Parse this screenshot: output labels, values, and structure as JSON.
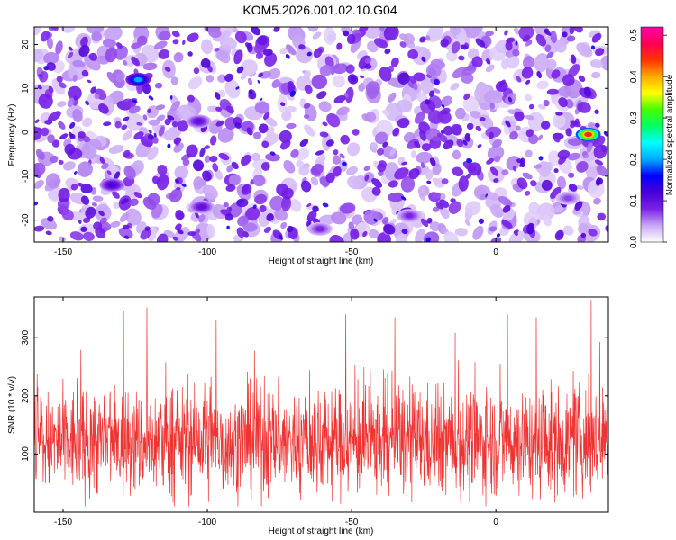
{
  "title": "KOM5.2026.001.02.10.G04",
  "chart_data": [
    {
      "type": "heatmap",
      "xlabel": "Height of straight line (km)",
      "ylabel": "Frequency (Hz)",
      "xlim": [
        -160,
        39
      ],
      "ylim": [
        -25,
        24
      ],
      "xticks": [
        -150,
        -100,
        -50,
        0
      ],
      "yticks": [
        -20,
        -10,
        0,
        10,
        20
      ],
      "colorbar": {
        "label": "Normalized spectral amplitude",
        "range": [
          0.0,
          0.52
        ],
        "ticks": [
          0.0,
          0.1,
          0.2,
          0.3,
          0.4,
          0.5
        ],
        "colors": [
          "#ffffff",
          "#c9a8f5",
          "#7a22e6",
          "#4a00d8",
          "#0000ff",
          "#00aaff",
          "#00ffff",
          "#00ff66",
          "#44ff00",
          "#ffff00",
          "#ffaa00",
          "#ff3300",
          "#ff0055",
          "#ff00aa"
        ]
      },
      "hotspots": [
        {
          "x": 32,
          "y": -0.5,
          "value": 0.45
        },
        {
          "x": -124,
          "y": 12,
          "value": 0.2
        },
        {
          "x": -133,
          "y": -12,
          "value": 0.12
        },
        {
          "x": -103,
          "y": 2.5,
          "value": 0.1
        },
        {
          "x": -102,
          "y": -17,
          "value": 0.1
        },
        {
          "x": -61,
          "y": -22,
          "value": 0.08
        },
        {
          "x": -30,
          "y": -19,
          "value": 0.08
        },
        {
          "x": 25,
          "y": -15,
          "value": 0.07
        }
      ]
    },
    {
      "type": "line",
      "xlabel": "Height of straight line (km)",
      "ylabel": "SNR (10 * v/v)",
      "xlim": [
        -160,
        39
      ],
      "ylim": [
        0,
        370
      ],
      "xticks": [
        -150,
        -100,
        -50,
        0
      ],
      "yticks": [
        100,
        200,
        300
      ],
      "series_color": "#ee3333",
      "noise_model": {
        "mean": 120,
        "std": 45,
        "min": 10,
        "max": 370,
        "samples": 1800
      },
      "peaks": [
        {
          "x": 33,
          "y": 365
        },
        {
          "x": -121,
          "y": 352
        },
        {
          "x": -129,
          "y": 345
        },
        {
          "x": -52,
          "y": 340
        },
        {
          "x": -35,
          "y": 335
        },
        {
          "x": 4,
          "y": 340
        },
        {
          "x": 14,
          "y": 335
        },
        {
          "x": -97,
          "y": 330
        }
      ]
    }
  ]
}
